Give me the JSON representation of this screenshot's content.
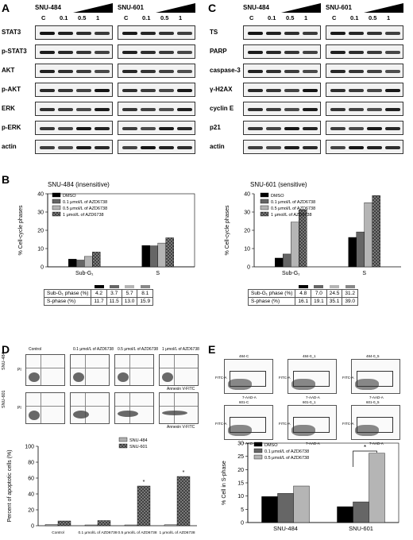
{
  "panels": {
    "A": {
      "letter": "A",
      "cells": [
        "SNU-484",
        "SNU-601"
      ],
      "lanes": [
        "C",
        "0.1",
        "0.5",
        "1"
      ],
      "rows": [
        "STAT3",
        "p-STAT3",
        "AKT",
        "p-AKT",
        "ERK",
        "p-ERK",
        "actin"
      ]
    },
    "C": {
      "letter": "C",
      "cells": [
        "SNU-484",
        "SNU-601"
      ],
      "lanes": [
        "C",
        "0.1",
        "0.5",
        "1"
      ],
      "rows": [
        "TS",
        "PARP",
        "caspase-3",
        "γ-H2AX",
        "cyclin E",
        "p21",
        "actin"
      ]
    },
    "B": {
      "letter": "B",
      "left_title": "SNU-484 (insensitive)",
      "right_title": "SNU-601 (sensitive)",
      "ylabel": "% Cell-cycle phases",
      "legend": [
        "DMSO",
        "0.1 μmol/L of AZD6738",
        "0.5 μmol/L of AZD6738",
        "1 μmol/L of AZD6738"
      ],
      "table_rows": [
        "Sub-G₁ phase (%)",
        "S-phase (%)"
      ],
      "left_table": [
        [
          "4.2",
          "3.7",
          "5.7",
          "8.1"
        ],
        [
          "11.7",
          "11.5",
          "13.0",
          "15.9"
        ]
      ],
      "right_table": [
        [
          "4.8",
          "7.0",
          "24.5",
          "31.2"
        ],
        [
          "16.1",
          "19.1",
          "35.1",
          "39.0"
        ]
      ]
    },
    "D": {
      "letter": "D",
      "flow_titles": [
        "Control",
        "0.1 μmol/L of AZD6738",
        "0.5 μmol/L of AZD6738",
        "1 μmol/L of AZD6738"
      ],
      "row_labels": [
        "SNU-484",
        "SNU-601"
      ],
      "pi_label": "PI",
      "xaxis_label": "Annexin V-FITC",
      "ylabel": "Percent of apoptotic cells (%)",
      "legend": [
        "SNU-484",
        "SNU-601"
      ]
    },
    "E": {
      "letter": "E",
      "ylabel": "% Cell in S-phase",
      "legend": [
        "DMSO",
        "0.1 μmol/L of AZD6738",
        "0.5 μmol/L of AZD6738"
      ],
      "flow_titles": [
        "484-C",
        "484-0_1",
        "484-0_5",
        "601-C",
        "601-0_1",
        "601-0_5"
      ],
      "axis_labels": [
        "FITC-A",
        "7-AAD-A"
      ]
    }
  },
  "chart_data": [
    {
      "type": "bar",
      "title": "SNU-484 (insensitive)",
      "ylabel": "% Cell-cycle phases",
      "categories": [
        "Sub-G₁",
        "S"
      ],
      "ylim": [
        0,
        40
      ],
      "series": [
        {
          "name": "DMSO",
          "values": [
            4.2,
            11.7
          ]
        },
        {
          "name": "0.1 μmol/L of AZD6738",
          "values": [
            3.7,
            11.5
          ]
        },
        {
          "name": "0.5 μmol/L of AZD6738",
          "values": [
            5.7,
            13.0
          ]
        },
        {
          "name": "1 μmol/L of AZD6738",
          "values": [
            8.1,
            15.9
          ]
        }
      ]
    },
    {
      "type": "bar",
      "title": "SNU-601 (sensitive)",
      "ylabel": "% Cell-cycle phases",
      "categories": [
        "Sub-G₁",
        "S"
      ],
      "ylim": [
        0,
        40
      ],
      "series": [
        {
          "name": "DMSO",
          "values": [
            4.8,
            16.1
          ]
        },
        {
          "name": "0.1 μmol/L of AZD6738",
          "values": [
            7.0,
            19.1
          ]
        },
        {
          "name": "0.5 μmol/L of AZD6738",
          "values": [
            24.5,
            35.1
          ]
        },
        {
          "name": "1 μmol/L of AZD6738",
          "values": [
            31.2,
            39.0
          ]
        }
      ]
    },
    {
      "type": "bar",
      "ylabel": "Percent of apoptotic cells (%)",
      "categories": [
        "Control",
        "0.1 μmol/L of AZD6738",
        "0.5 μmol/L of AZD6738",
        "1 μmol/L of AZD6738"
      ],
      "ylim": [
        0,
        100
      ],
      "series": [
        {
          "name": "SNU-484",
          "values": [
            1.5,
            1.0,
            1.0,
            1.2
          ]
        },
        {
          "name": "SNU-601",
          "values": [
            6.0,
            6.5,
            50.0,
            62.0
          ]
        }
      ]
    },
    {
      "type": "bar",
      "ylabel": "% Cell in S-phase",
      "categories": [
        "SNU-484",
        "SNU-601"
      ],
      "ylim": [
        0,
        30
      ],
      "series": [
        {
          "name": "DMSO",
          "values": [
            9.8,
            6.0
          ]
        },
        {
          "name": "0.1 μmol/L of AZD6738",
          "values": [
            11.0,
            7.8
          ]
        },
        {
          "name": "0.5 μmol/L of AZD6738",
          "values": [
            13.8,
            26.2
          ]
        }
      ]
    }
  ]
}
